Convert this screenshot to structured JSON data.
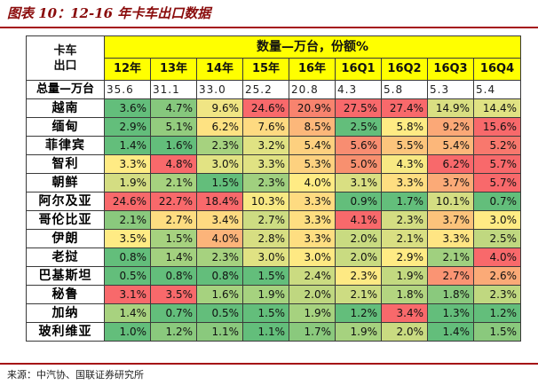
{
  "title": "图表 10：12-16 年卡车出口数据",
  "source": "来源：中汽协、国联证券研究所",
  "table": {
    "corner_line1": "卡车",
    "corner_line2": "出口",
    "group_header": "数量—万台，份额%",
    "columns": [
      "12年",
      "13年",
      "14年",
      "15年",
      "16年",
      "16Q1",
      "16Q2",
      "16Q3",
      "16Q4"
    ],
    "total_row": {
      "label": "总量—万台",
      "values": [
        "35.6",
        "31.1",
        "33.0",
        "25.2",
        "20.8",
        "4.3",
        "5.8",
        "5.3",
        "5.4"
      ]
    },
    "rows": [
      {
        "label": "越南",
        "values": [
          "3.6%",
          "4.7%",
          "9.6%",
          "24.6%",
          "20.9%",
          "27.5%",
          "27.4%",
          "14.9%",
          "14.4%"
        ],
        "colors": [
          "#63be7b",
          "#86c87d",
          "#f0e584",
          "#f8696b",
          "#f8836e",
          "#f8696b",
          "#f8696b",
          "#d9df82",
          "#e0e283"
        ]
      },
      {
        "label": "缅甸",
        "values": [
          "2.9%",
          "5.1%",
          "6.2%",
          "7.6%",
          "8.5%",
          "2.5%",
          "5.8%",
          "9.2%",
          "15.6%"
        ],
        "colors": [
          "#63be7b",
          "#93cc7e",
          "#fee282",
          "#feda81",
          "#fcb77a",
          "#63be7b",
          "#ffeb84",
          "#fba877",
          "#f8696b"
        ]
      },
      {
        "label": "菲律宾",
        "values": [
          "1.4%",
          "1.6%",
          "2.3%",
          "3.2%",
          "5.4%",
          "5.6%",
          "5.5%",
          "5.4%",
          "5.2%"
        ],
        "colors": [
          "#63be7b",
          "#63be7b",
          "#a6d27f",
          "#e0e283",
          "#fdd07f",
          "#f88d71",
          "#fcc57c",
          "#fcb77a",
          "#f8786d"
        ]
      },
      {
        "label": "智利",
        "values": [
          "3.3%",
          "4.8%",
          "3.0%",
          "3.3%",
          "5.3%",
          "5.0%",
          "4.3%",
          "6.2%",
          "5.7%"
        ],
        "colors": [
          "#ffeb84",
          "#f8696b",
          "#e2e383",
          "#e0e283",
          "#fdd17f",
          "#f8906f",
          "#f8e983",
          "#f8696b",
          "#f8696b"
        ]
      },
      {
        "label": "朝鲜",
        "values": [
          "1.9%",
          "2.1%",
          "1.5%",
          "2.3%",
          "4.0%",
          "3.1%",
          "3.3%",
          "3.7%",
          "5.7%"
        ],
        "colors": [
          "#d4dd82",
          "#a6d27f",
          "#63be7b",
          "#a0d07f",
          "#ffeb84",
          "#d9df82",
          "#fede81",
          "#fbaa77",
          "#f8696b"
        ]
      },
      {
        "label": "阿尔及亚",
        "values": [
          "24.6%",
          "22.7%",
          "18.4%",
          "10.3%",
          "3.3%",
          "0.9%",
          "1.7%",
          "10.1%",
          "0.7%"
        ],
        "colors": [
          "#f8696b",
          "#f8696b",
          "#f8696b",
          "#f8e983",
          "#fedb81",
          "#63be7b",
          "#63be7b",
          "#d4dd82",
          "#63be7b"
        ]
      },
      {
        "label": "哥伦比亚",
        "values": [
          "2.1%",
          "2.7%",
          "3.4%",
          "2.7%",
          "3.3%",
          "4.1%",
          "2.3%",
          "3.7%",
          "3.0%"
        ],
        "colors": [
          "#8ac97d",
          "#fedd81",
          "#feda81",
          "#cddc82",
          "#fede81",
          "#f8696b",
          "#d4dd82",
          "#fcc37b",
          "#ffeb84"
        ]
      },
      {
        "label": "伊朗",
        "values": [
          "3.5%",
          "1.5%",
          "4.0%",
          "2.8%",
          "3.3%",
          "2.0%",
          "2.1%",
          "3.3%",
          "2.5%"
        ],
        "colors": [
          "#ffeb84",
          "#a6d27f",
          "#fcb47a",
          "#d7de82",
          "#fede81",
          "#c9db81",
          "#d9df82",
          "#ffe583",
          "#c0d880"
        ]
      },
      {
        "label": "老挝",
        "values": [
          "0.8%",
          "1.4%",
          "2.3%",
          "3.0%",
          "3.0%",
          "2.0%",
          "2.9%",
          "2.1%",
          "4.0%"
        ],
        "colors": [
          "#63be7b",
          "#a3d17f",
          "#a6d27f",
          "#e0e283",
          "#fee983",
          "#c9db81",
          "#ffeb84",
          "#a0d07f",
          "#f8696b"
        ]
      },
      {
        "label": "巴基斯坦",
        "values": [
          "0.5%",
          "0.8%",
          "0.8%",
          "1.5%",
          "2.4%",
          "2.3%",
          "1.9%",
          "2.7%",
          "2.6%"
        ],
        "colors": [
          "#63be7b",
          "#63be7b",
          "#63be7b",
          "#63be7b",
          "#cbdb81",
          "#fee983",
          "#c3d980",
          "#fa9473",
          "#fbaa77"
        ]
      },
      {
        "label": "秘鲁",
        "values": [
          "3.1%",
          "3.5%",
          "1.6%",
          "1.9%",
          "2.0%",
          "2.1%",
          "1.8%",
          "1.8%",
          "2.3%"
        ],
        "colors": [
          "#f8696b",
          "#f8696b",
          "#a6d27f",
          "#a6d27f",
          "#bfd780",
          "#cddc82",
          "#b3d580",
          "#8ac97d",
          "#c0d880"
        ]
      },
      {
        "label": "加纳",
        "values": [
          "1.4%",
          "0.7%",
          "0.5%",
          "1.5%",
          "1.9%",
          "1.2%",
          "3.4%",
          "1.3%",
          "1.2%"
        ],
        "colors": [
          "#a8d27f",
          "#63be7b",
          "#63be7b",
          "#63be7b",
          "#a6d27f",
          "#63be7b",
          "#f8696b",
          "#63be7b",
          "#63be7b"
        ]
      },
      {
        "label": "玻利维亚",
        "values": [
          "1.0%",
          "1.2%",
          "1.1%",
          "1.1%",
          "1.7%",
          "1.9%",
          "2.0%",
          "1.4%",
          "1.5%"
        ],
        "colors": [
          "#63be7b",
          "#8ac97d",
          "#8ac97d",
          "#63be7b",
          "#8ac97d",
          "#a6d27f",
          "#c9db81",
          "#63be7b",
          "#8ac97d"
        ]
      }
    ]
  }
}
